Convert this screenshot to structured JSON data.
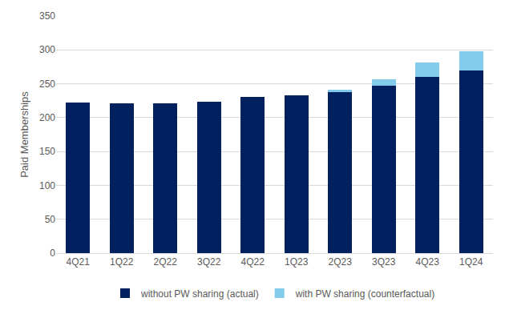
{
  "chart_data": {
    "type": "bar",
    "stacked": true,
    "categories": [
      "4Q21",
      "1Q22",
      "2Q22",
      "3Q22",
      "4Q22",
      "1Q23",
      "2Q23",
      "3Q23",
      "4Q23",
      "1Q24"
    ],
    "series": [
      {
        "name": "without PW sharing (actual)",
        "color": "#002060",
        "values": [
          222,
          221,
          221,
          223,
          231,
          233,
          238,
          247,
          260,
          270
        ]
      },
      {
        "name": "with PW sharing (counterfactual)",
        "color": "#83cbeb",
        "values": [
          0,
          0,
          0,
          0,
          0,
          0,
          3,
          10,
          21,
          28
        ]
      }
    ],
    "y_label": "Paid Memberships",
    "ylim": [
      0,
      350
    ],
    "yticks": [
      0,
      50,
      100,
      150,
      200,
      250,
      300,
      350
    ],
    "grid": true,
    "legend": "bottom"
  }
}
